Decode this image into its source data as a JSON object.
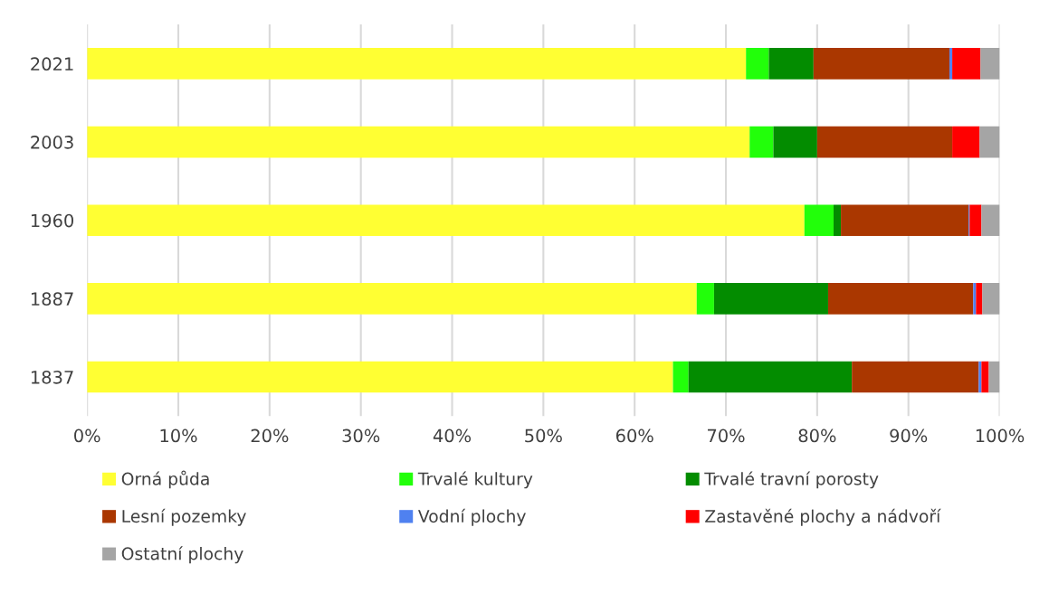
{
  "chart_data": {
    "type": "bar",
    "orientation": "horizontal",
    "stacked": true,
    "categories": [
      "2021",
      "2003",
      "1960",
      "1887",
      "1837"
    ],
    "series": [
      {
        "name": "Orná půda",
        "color": "#ffff33",
        "values": [
          72.2,
          72.6,
          78.6,
          66.8,
          64.2
        ]
      },
      {
        "name": "Trvalé kultury",
        "color": "#22ff0a",
        "values": [
          2.5,
          2.6,
          3.2,
          1.9,
          1.7
        ]
      },
      {
        "name": "Trvalé travní porosty",
        "color": "#038c00",
        "values": [
          4.9,
          4.8,
          0.8,
          12.5,
          17.9
        ]
      },
      {
        "name": "Lesní pozemky",
        "color": "#aa3700",
        "values": [
          14.9,
          14.8,
          14.0,
          15.9,
          13.9
        ]
      },
      {
        "name": "Vodní plochy",
        "color": "#4f81f0",
        "values": [
          0.3,
          0,
          0.1,
          0.3,
          0.3
        ]
      },
      {
        "name": "Zastavěné plochy a nádvoří",
        "color": "#ff0000",
        "values": [
          3.1,
          3.0,
          1.3,
          0.7,
          0.8
        ]
      },
      {
        "name": "Ostatní plochy",
        "color": "#a5a5a5",
        "values": [
          2.1,
          2.2,
          2.0,
          1.9,
          1.2
        ]
      }
    ],
    "xlim": [
      0,
      100
    ],
    "xticks": [
      {
        "value": 0,
        "label": "0%"
      },
      {
        "value": 10,
        "label": "10%"
      },
      {
        "value": 20,
        "label": "20%"
      },
      {
        "value": 30,
        "label": "30%"
      },
      {
        "value": 40,
        "label": "40%"
      },
      {
        "value": 50,
        "label": "50%"
      },
      {
        "value": 60,
        "label": "60%"
      },
      {
        "value": 70,
        "label": "70%"
      },
      {
        "value": 80,
        "label": "80%"
      },
      {
        "value": 90,
        "label": "90%"
      },
      {
        "value": 100,
        "label": "100%"
      }
    ],
    "grid": "x",
    "legend": "bottom"
  }
}
